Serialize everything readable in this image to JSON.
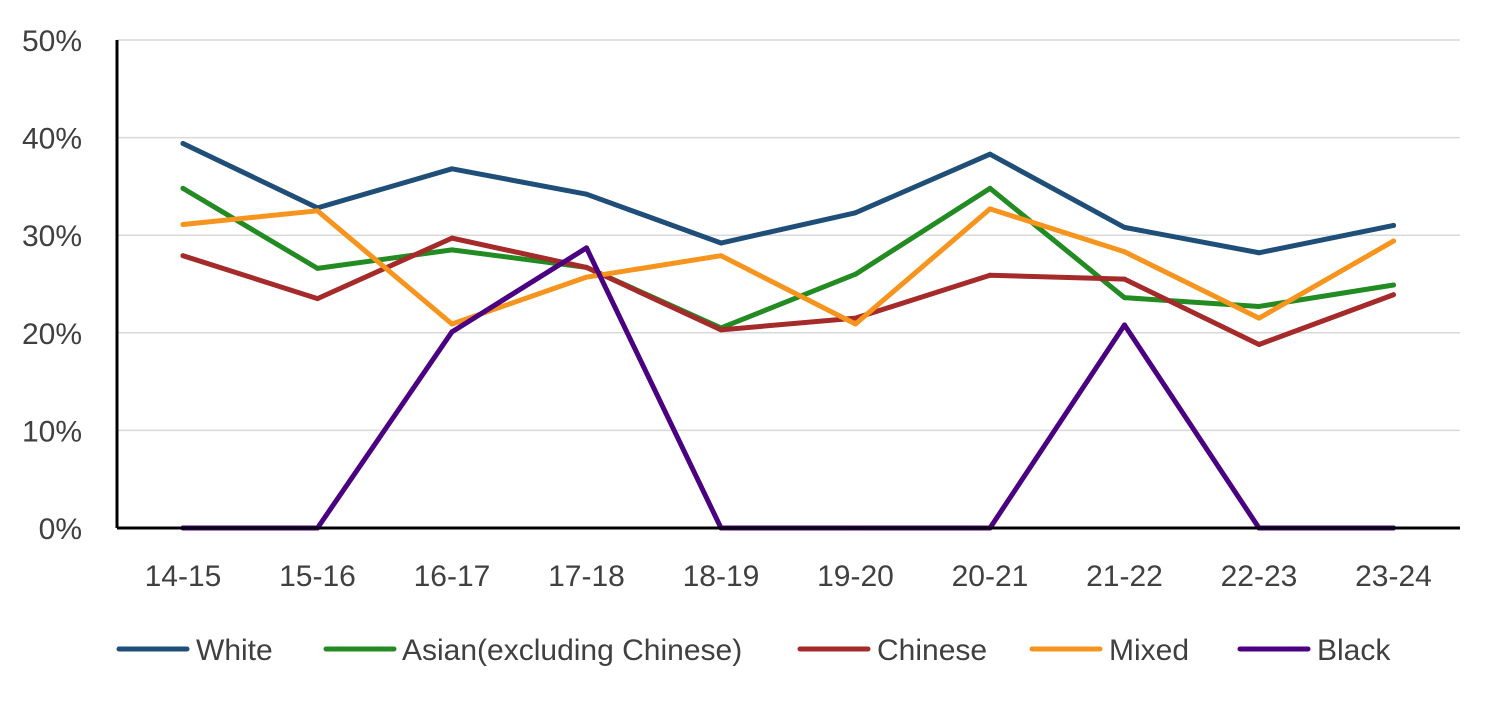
{
  "chart_data": {
    "type": "line",
    "title": "",
    "xlabel": "",
    "ylabel": "",
    "categories": [
      "14-15",
      "15-16",
      "16-17",
      "17-18",
      "18-19",
      "19-20",
      "20-21",
      "21-22",
      "22-23",
      "23-24"
    ],
    "ylim": [
      0,
      50
    ],
    "yticks": [
      0,
      10,
      20,
      30,
      40,
      50
    ],
    "ytick_labels": [
      "0%",
      "10%",
      "20%",
      "30%",
      "40%",
      "50%"
    ],
    "grid": true,
    "legend_position": "bottom",
    "series": [
      {
        "name": "White",
        "color": "#1f4e79",
        "values": [
          39.4,
          32.8,
          36.8,
          34.2,
          29.2,
          32.3,
          38.3,
          30.8,
          28.2,
          31.0
        ]
      },
      {
        "name": "Asian(excluding Chinese)",
        "color": "#228b22",
        "values": [
          34.8,
          26.6,
          28.5,
          26.7,
          20.5,
          26.0,
          34.8,
          23.6,
          22.7,
          24.9
        ]
      },
      {
        "name": "Chinese",
        "color": "#a52a2a",
        "values": [
          27.9,
          23.5,
          29.7,
          26.7,
          20.3,
          21.5,
          25.9,
          25.5,
          18.8,
          23.9
        ]
      },
      {
        "name": "Mixed",
        "color": "#f7941d",
        "values": [
          31.1,
          32.5,
          20.9,
          25.7,
          27.9,
          20.9,
          32.7,
          28.3,
          21.5,
          29.4
        ]
      },
      {
        "name": "Black",
        "color": "#4b0082",
        "values": [
          0,
          0,
          20.1,
          28.7,
          0,
          0,
          0,
          20.8,
          0,
          0
        ]
      }
    ]
  }
}
